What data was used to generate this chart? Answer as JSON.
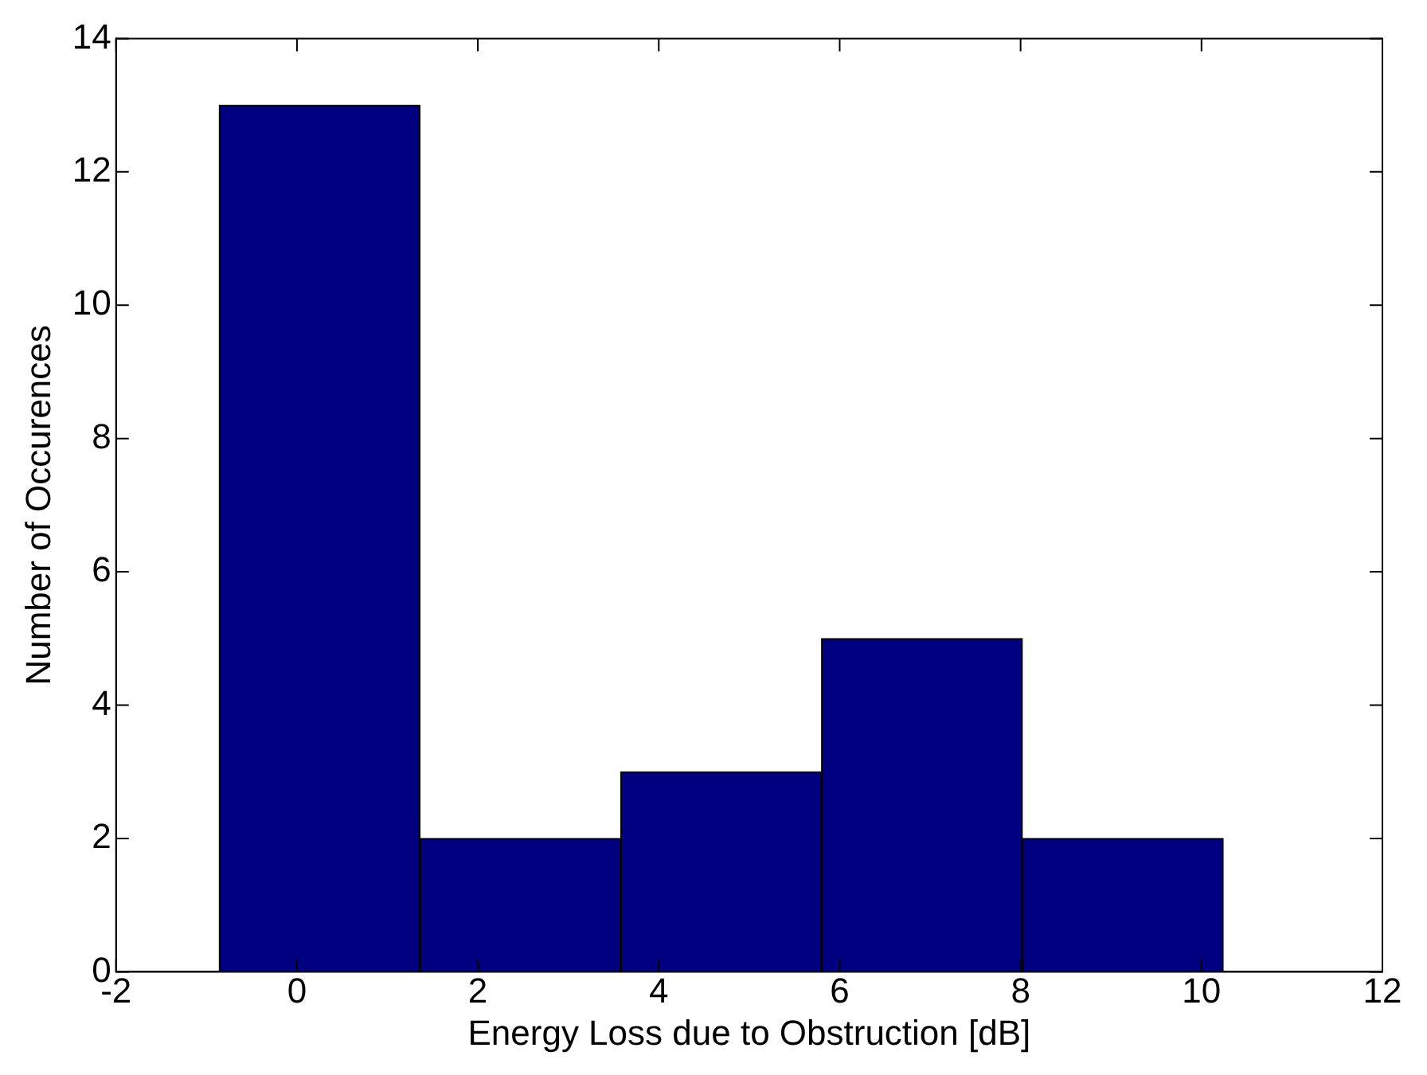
{
  "chart_data": {
    "type": "histogram",
    "xlabel": "Energy Loss due to Obstruction [dB]",
    "ylabel": "Number of Occurences",
    "bins": [
      -0.86,
      1.36,
      3.58,
      5.8,
      8.02,
      10.24
    ],
    "values": [
      13,
      2,
      3,
      5,
      2
    ],
    "color": "#000080",
    "xlim": [
      -2,
      12
    ],
    "xticks": [
      -2,
      0,
      2,
      4,
      6,
      8,
      10,
      12
    ],
    "ylim": [
      0,
      14
    ],
    "yticks": [
      0,
      2,
      4,
      6,
      8,
      10,
      12,
      14
    ],
    "grid": false,
    "legend": false
  }
}
